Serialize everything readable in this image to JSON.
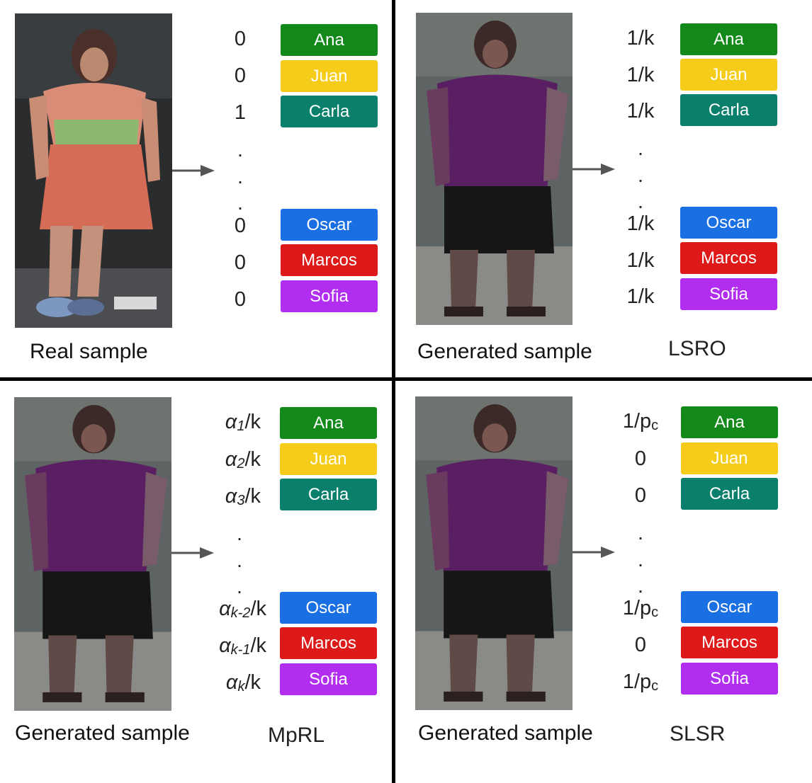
{
  "labels": [
    "Ana",
    "Juan",
    "Carla",
    "Oscar",
    "Marcos",
    "Sofia"
  ],
  "label_colors": [
    "#12891a",
    "#f5cc1a",
    "#0a7f6b",
    "#1a6fe3",
    "#dd1919",
    "#b12ef0"
  ],
  "panels": {
    "real": {
      "caption": "Real sample",
      "method": "",
      "values": [
        "0",
        "0",
        "1",
        "0",
        "0",
        "0"
      ]
    },
    "lsro": {
      "caption": "Generated sample",
      "method": "LSRO",
      "values": [
        "1/k",
        "1/k",
        "1/k",
        "1/k",
        "1/k",
        "1/k"
      ]
    },
    "mprl": {
      "caption": "Generated sample",
      "method": "MpRL",
      "alpha_symbol": "α",
      "alpha_subscripts": [
        "1",
        "2",
        "3",
        "k-2",
        "k-1",
        "k"
      ],
      "alpha_suffix": "/k"
    },
    "slsr": {
      "caption": "Generated sample",
      "method": "SLSR",
      "pc_prefix": "1/p",
      "pc_sub": "c",
      "values": [
        "1/pc",
        "0",
        "0",
        "1/pc",
        "0",
        "1/pc"
      ]
    }
  },
  "ellipsis_dot": "."
}
